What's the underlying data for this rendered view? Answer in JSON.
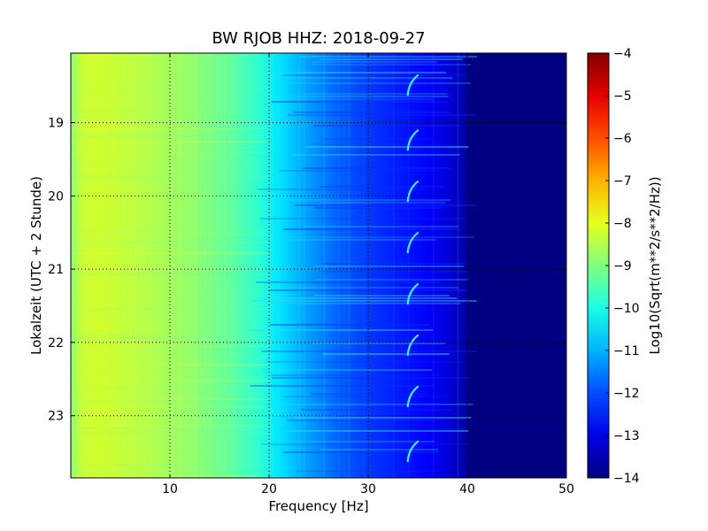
{
  "chart_data": {
    "type": "heatmap",
    "title": "BW RJOB HHZ: 2018-09-27",
    "xlabel": "Frequency [Hz]",
    "ylabel": "Lokalzeit (UTC + 2 Stunde)",
    "xlim": [
      0,
      50
    ],
    "ylim": [
      18.05,
      23.85
    ],
    "y_inverted": true,
    "x_ticks": [
      10,
      20,
      30,
      40,
      50
    ],
    "x_tick_labels": [
      "10",
      "20",
      "30",
      "40",
      "50"
    ],
    "y_ticks": [
      19,
      20,
      21,
      22,
      23
    ],
    "y_tick_labels": [
      "19",
      "20",
      "21",
      "22",
      "23"
    ],
    "grid": true,
    "colormap": "jet",
    "colorbar": {
      "label": "Log10(Sqrt(m**2/s**2/Hz))",
      "range": [
        -14,
        -4
      ],
      "ticks": [
        -4,
        -5,
        -6,
        -7,
        -8,
        -9,
        -10,
        -11,
        -12,
        -13,
        -14
      ],
      "tick_labels": [
        "−4",
        "−5",
        "−6",
        "−7",
        "−8",
        "−9",
        "−10",
        "−11",
        "−12",
        "−13",
        "−14"
      ]
    },
    "spectrum_profile": {
      "frequency_hz": [
        0,
        1,
        3,
        8,
        12,
        16,
        19,
        21,
        24,
        27,
        30,
        33,
        36,
        38,
        39.5,
        40.5,
        42,
        50
      ],
      "log10_amplitude": [
        -8.9,
        -8.3,
        -8.2,
        -8.5,
        -8.8,
        -9.3,
        -9.8,
        -10.5,
        -11.2,
        -11.8,
        -12.2,
        -12.5,
        -12.8,
        -13.1,
        -13.5,
        -14,
        -14,
        -14
      ]
    },
    "recurring_feature": {
      "frequency_range_hz": [
        34,
        35
      ],
      "times": [
        18.5,
        19.25,
        19.95,
        20.65,
        21.35,
        22.05,
        22.75,
        23.5
      ]
    }
  }
}
